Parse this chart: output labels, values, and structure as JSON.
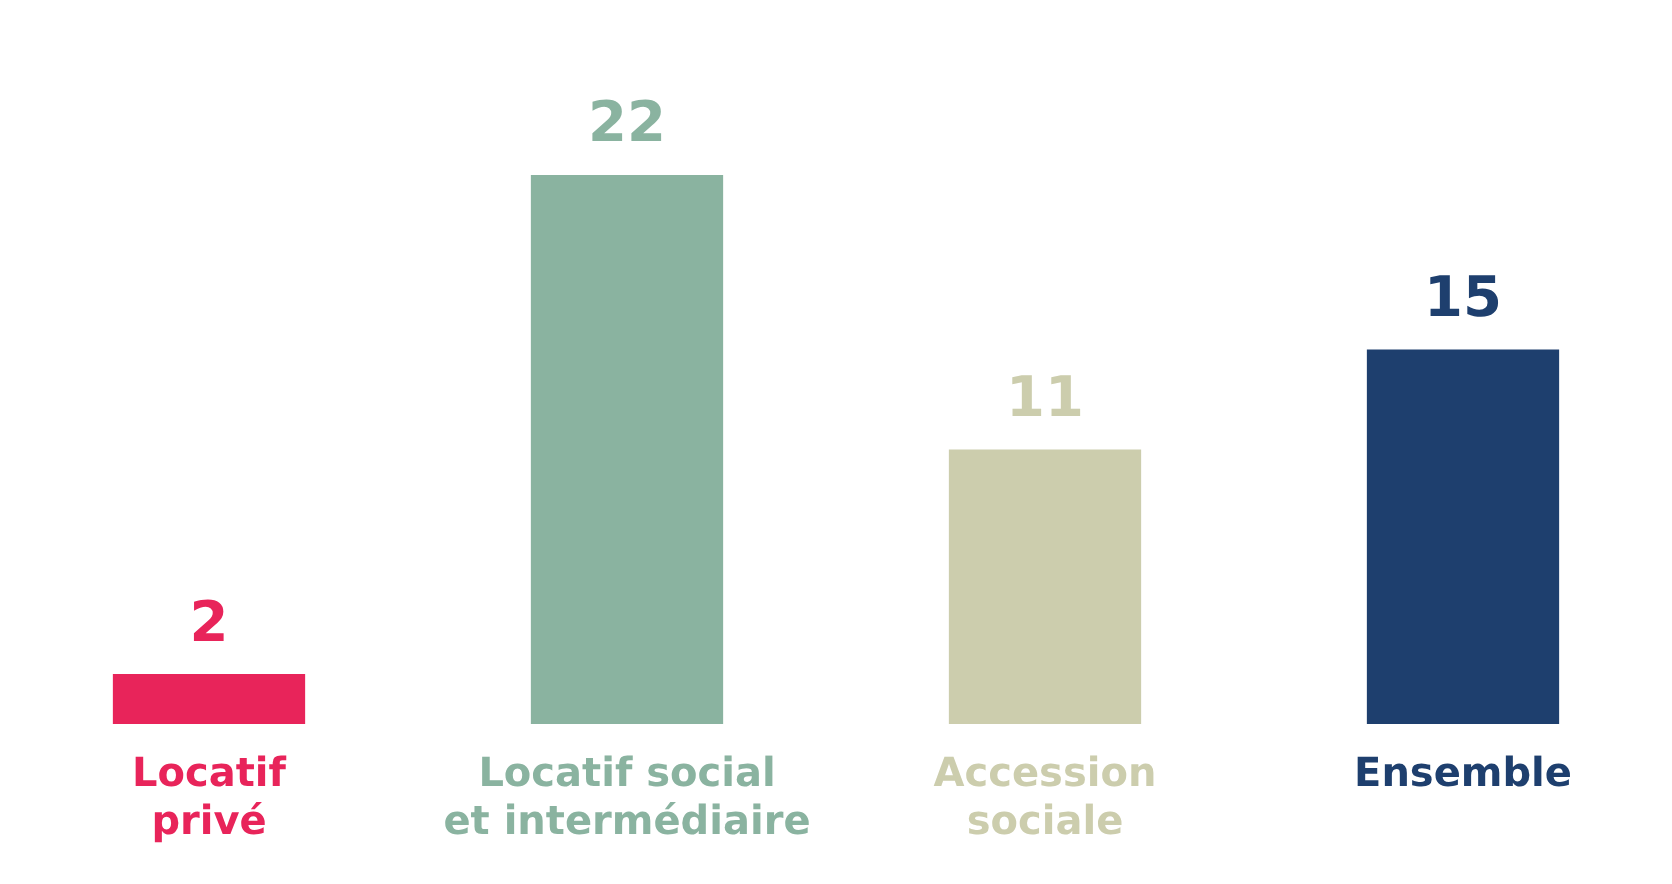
{
  "chart_data": {
    "type": "bar",
    "categories": [
      "Locatif privé",
      "Locatif social et intermédiaire",
      "Accession sociale",
      "Ensemble"
    ],
    "values": [
      2,
      22,
      11,
      15
    ],
    "colors": [
      "#e8245a",
      "#8ab3a0",
      "#cccdad",
      "#1e3f6e"
    ],
    "data_labels": true,
    "grid": false,
    "legend": false
  }
}
